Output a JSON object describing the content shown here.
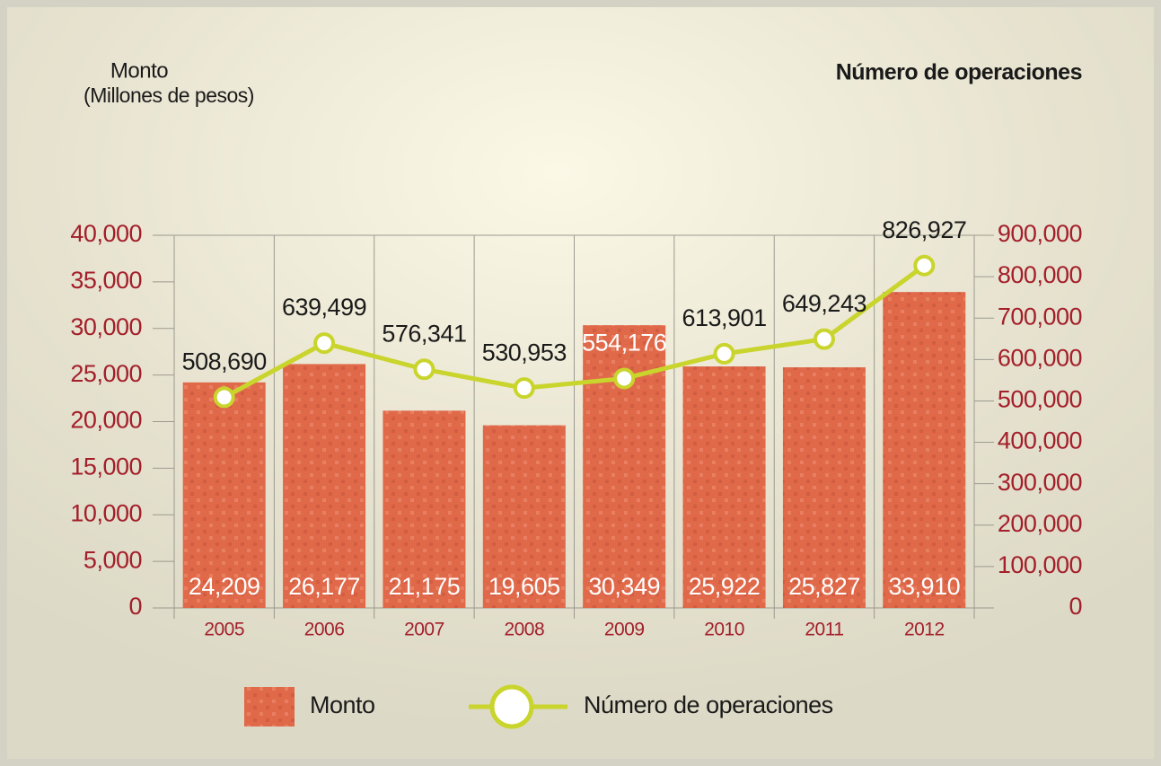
{
  "chart_data": {
    "type": "bar_line",
    "y_label": "Monto",
    "y_sublabel": "(Millones de pesos)",
    "y2_label": "Número de operaciones",
    "categories": [
      "2005",
      "2006",
      "2007",
      "2008",
      "2009",
      "2010",
      "2011",
      "2012"
    ],
    "series": [
      {
        "name": "Monto",
        "type": "bar",
        "color": "#e0694a",
        "values": [
          24209,
          26177,
          21175,
          19605,
          30349,
          25922,
          25827,
          33910
        ],
        "value_labels": [
          "24,209",
          "26,177",
          "21,175",
          "19,605",
          "30,349",
          "25,922",
          "25,827",
          "33,910"
        ]
      },
      {
        "name": "Número de operaciones",
        "type": "line",
        "axis": "y2",
        "color": "#c9d42c",
        "values": [
          508690,
          639499,
          576341,
          530953,
          554176,
          613901,
          649243,
          826927
        ],
        "value_labels": [
          "508,690",
          "639,499",
          "576,341",
          "530,953",
          "554,176",
          "613,901",
          "649,243",
          "826,927"
        ]
      }
    ],
    "ylim": [
      0,
      40000
    ],
    "yticks": [
      0,
      {
        "value": 5000,
        "label": "5,000"
      },
      {
        "value": 10000,
        "label": "10,000"
      },
      {
        "value": 15000,
        "label": "15,000"
      },
      {
        "value": 20000,
        "label": "20,000"
      },
      {
        "value": 25000,
        "label": "25,000"
      },
      {
        "value": 30000,
        "label": "30,000"
      },
      {
        "value": 35000,
        "label": "35,000"
      },
      {
        "value": 40000,
        "label": "40,000"
      }
    ],
    "y2lim": [
      0,
      900000
    ],
    "y2ticks": [
      0,
      {
        "value": 100000,
        "label": "100,000"
      },
      {
        "value": 200000,
        "label": "200,000"
      },
      {
        "value": 300000,
        "label": "300,000"
      },
      {
        "value": 400000,
        "label": "400,000"
      },
      {
        "value": 500000,
        "label": "500,000"
      },
      {
        "value": 600000,
        "label": "600,000"
      },
      {
        "value": 700000,
        "label": "700,000"
      },
      {
        "value": 800000,
        "label": "800,000"
      },
      {
        "value": 900000,
        "label": "900,000"
      }
    ],
    "grid": true,
    "legend": "bottom"
  }
}
